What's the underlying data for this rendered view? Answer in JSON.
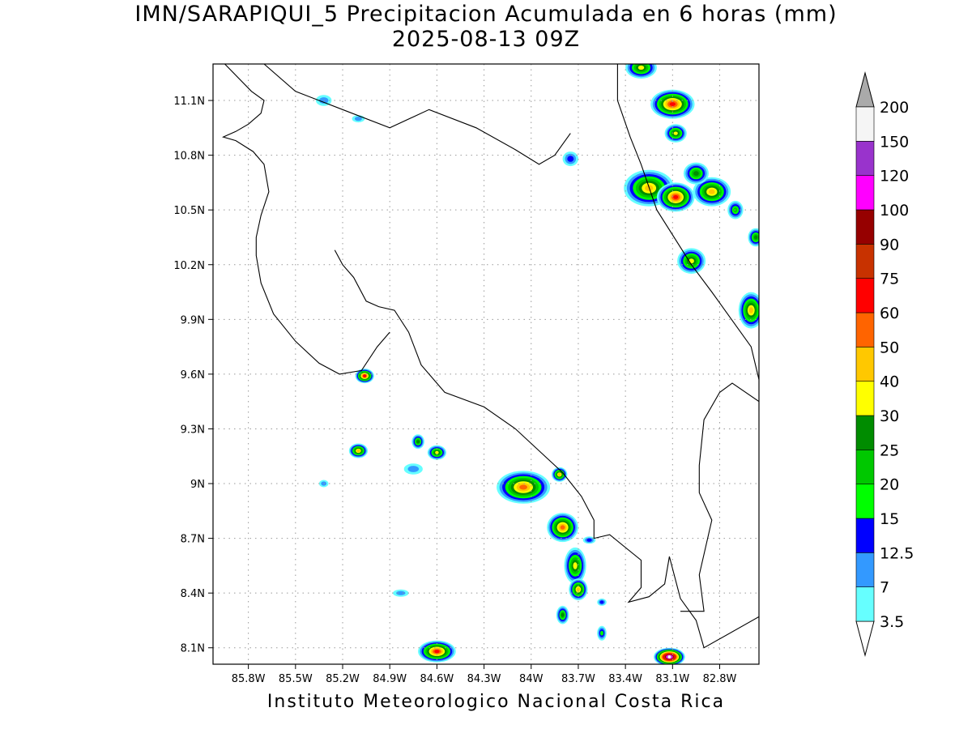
{
  "title": {
    "line1": "IMN/SARAPIQUI_5 Precipitacion Acumulada en 6 horas (mm)",
    "line2": "2025-08-13 09Z"
  },
  "footer": "Instituto Meteorologico Nacional Costa Rica",
  "map": {
    "lon_range": [
      -86.025,
      -82.55
    ],
    "lat_range": [
      8.01,
      11.3
    ],
    "lon_ticks": [
      {
        "value": -85.8,
        "label": "85.8W"
      },
      {
        "value": -85.5,
        "label": "85.5W"
      },
      {
        "value": -85.2,
        "label": "85.2W"
      },
      {
        "value": -84.9,
        "label": "84.9W"
      },
      {
        "value": -84.6,
        "label": "84.6W"
      },
      {
        "value": -84.3,
        "label": "84.3W"
      },
      {
        "value": -84.0,
        "label": "84W"
      },
      {
        "value": -83.7,
        "label": "83.7W"
      },
      {
        "value": -83.4,
        "label": "83.4W"
      },
      {
        "value": -83.1,
        "label": "83.1W"
      },
      {
        "value": -82.8,
        "label": "82.8W"
      }
    ],
    "lat_ticks": [
      {
        "value": 11.1,
        "label": "11.1N"
      },
      {
        "value": 10.8,
        "label": "10.8N"
      },
      {
        "value": 10.5,
        "label": "10.5N"
      },
      {
        "value": 10.2,
        "label": "10.2N"
      },
      {
        "value": 9.9,
        "label": "9.9N"
      },
      {
        "value": 9.6,
        "label": "9.6N"
      },
      {
        "value": 9.3,
        "label": "9.3N"
      },
      {
        "value": 9.0,
        "label": "9N"
      },
      {
        "value": 8.7,
        "label": "8.7N"
      },
      {
        "value": 8.4,
        "label": "8.4N"
      },
      {
        "value": 8.1,
        "label": "8.1N"
      }
    ],
    "grid": "dotted",
    "coastlines": [
      [
        [
          -85.95,
          11.3
        ],
        [
          -85.78,
          11.15
        ],
        [
          -85.7,
          11.1
        ],
        [
          -85.72,
          11.03
        ],
        [
          -85.8,
          10.97
        ],
        [
          -85.88,
          10.93
        ],
        [
          -85.96,
          10.9
        ],
        [
          -85.88,
          10.88
        ],
        [
          -85.77,
          10.82
        ],
        [
          -85.7,
          10.75
        ],
        [
          -85.67,
          10.6
        ],
        [
          -85.72,
          10.47
        ],
        [
          -85.75,
          10.35
        ],
        [
          -85.75,
          10.25
        ],
        [
          -85.72,
          10.1
        ],
        [
          -85.64,
          9.93
        ],
        [
          -85.5,
          9.78
        ],
        [
          -85.35,
          9.66
        ],
        [
          -85.22,
          9.6
        ],
        [
          -85.08,
          9.62
        ],
        [
          -84.98,
          9.75
        ],
        [
          -84.9,
          9.83
        ]
      ],
      [
        [
          -85.25,
          10.28
        ],
        [
          -85.2,
          10.2
        ],
        [
          -85.13,
          10.13
        ],
        [
          -85.05,
          10.0
        ],
        [
          -84.97,
          9.97
        ],
        [
          -84.87,
          9.95
        ],
        [
          -84.78,
          9.83
        ],
        [
          -84.7,
          9.65
        ],
        [
          -84.55,
          9.5
        ],
        [
          -84.3,
          9.42
        ],
        [
          -84.1,
          9.3
        ],
        [
          -83.95,
          9.18
        ],
        [
          -83.8,
          9.06
        ],
        [
          -83.68,
          8.93
        ],
        [
          -83.6,
          8.8
        ],
        [
          -83.6,
          8.7
        ],
        [
          -83.5,
          8.72
        ],
        [
          -83.3,
          8.58
        ],
        [
          -83.3,
          8.43
        ],
        [
          -83.38,
          8.35
        ],
        [
          -83.25,
          8.38
        ],
        [
          -83.15,
          8.45
        ],
        [
          -83.12,
          8.6
        ],
        [
          -83.05,
          8.37
        ],
        [
          -82.95,
          8.25
        ],
        [
          -82.9,
          8.1
        ],
        [
          -82.55,
          8.27
        ]
      ],
      [
        [
          -83.45,
          11.3
        ],
        [
          -83.45,
          11.1
        ],
        [
          -83.37,
          10.9
        ],
        [
          -83.3,
          10.75
        ],
        [
          -83.2,
          10.5
        ],
        [
          -82.98,
          10.2
        ],
        [
          -82.85,
          10.05
        ],
        [
          -82.6,
          9.75
        ],
        [
          -82.55,
          9.57
        ]
      ],
      [
        [
          -85.7,
          11.3
        ],
        [
          -85.5,
          11.15
        ],
        [
          -85.2,
          11.05
        ],
        [
          -84.9,
          10.95
        ],
        [
          -84.65,
          11.05
        ],
        [
          -84.35,
          10.95
        ],
        [
          -84.1,
          10.83
        ],
        [
          -83.95,
          10.75
        ],
        [
          -83.85,
          10.8
        ],
        [
          -83.75,
          10.92
        ]
      ],
      [
        [
          -82.55,
          9.45
        ],
        [
          -82.72,
          9.55
        ],
        [
          -82.8,
          9.5
        ],
        [
          -82.9,
          9.35
        ],
        [
          -82.93,
          9.1
        ],
        [
          -82.93,
          8.95
        ],
        [
          -82.85,
          8.8
        ],
        [
          -82.93,
          8.5
        ],
        [
          -82.9,
          8.3
        ],
        [
          -83.05,
          8.3
        ]
      ]
    ],
    "precip_cells": [
      {
        "lon": -83.1,
        "lat": 11.08,
        "rx": 0.14,
        "ry": 0.08,
        "max": 60
      },
      {
        "lon": -83.3,
        "lat": 11.28,
        "rx": 0.1,
        "ry": 0.06,
        "max": 35
      },
      {
        "lon": -83.08,
        "lat": 10.92,
        "rx": 0.07,
        "ry": 0.05,
        "max": 30
      },
      {
        "lon": -83.25,
        "lat": 10.62,
        "rx": 0.16,
        "ry": 0.1,
        "max": 40
      },
      {
        "lon": -83.08,
        "lat": 10.57,
        "rx": 0.12,
        "ry": 0.08,
        "max": 60
      },
      {
        "lon": -82.85,
        "lat": 10.6,
        "rx": 0.12,
        "ry": 0.08,
        "max": 40
      },
      {
        "lon": -82.95,
        "lat": 10.7,
        "rx": 0.08,
        "ry": 0.06,
        "max": 25
      },
      {
        "lon": -82.7,
        "lat": 10.5,
        "rx": 0.05,
        "ry": 0.05,
        "max": 20
      },
      {
        "lon": -82.98,
        "lat": 10.22,
        "rx": 0.09,
        "ry": 0.07,
        "max": 30
      },
      {
        "lon": -82.6,
        "lat": 9.95,
        "rx": 0.08,
        "ry": 0.1,
        "max": 40
      },
      {
        "lon": -82.57,
        "lat": 10.35,
        "rx": 0.05,
        "ry": 0.05,
        "max": 25
      },
      {
        "lon": -84.05,
        "lat": 8.98,
        "rx": 0.17,
        "ry": 0.09,
        "max": 50
      },
      {
        "lon": -83.8,
        "lat": 8.76,
        "rx": 0.1,
        "ry": 0.08,
        "max": 50
      },
      {
        "lon": -83.72,
        "lat": 8.55,
        "rx": 0.07,
        "ry": 0.1,
        "max": 30
      },
      {
        "lon": -83.7,
        "lat": 8.42,
        "rx": 0.06,
        "ry": 0.06,
        "max": 40
      },
      {
        "lon": -84.6,
        "lat": 8.08,
        "rx": 0.12,
        "ry": 0.06,
        "max": 60
      },
      {
        "lon": -83.12,
        "lat": 8.05,
        "rx": 0.1,
        "ry": 0.05,
        "max": 150
      },
      {
        "lon": -85.06,
        "lat": 9.59,
        "rx": 0.06,
        "ry": 0.04,
        "max": 60
      },
      {
        "lon": -85.1,
        "lat": 9.18,
        "rx": 0.06,
        "ry": 0.04,
        "max": 40
      },
      {
        "lon": -84.6,
        "lat": 9.17,
        "rx": 0.06,
        "ry": 0.04,
        "max": 35
      },
      {
        "lon": -84.72,
        "lat": 9.23,
        "rx": 0.04,
        "ry": 0.04,
        "max": 25
      },
      {
        "lon": -83.82,
        "lat": 9.05,
        "rx": 0.05,
        "ry": 0.04,
        "max": 40
      },
      {
        "lon": -83.8,
        "lat": 8.28,
        "rx": 0.04,
        "ry": 0.05,
        "max": 25
      },
      {
        "lon": -83.55,
        "lat": 8.18,
        "rx": 0.03,
        "ry": 0.04,
        "max": 15
      },
      {
        "lon": -84.83,
        "lat": 8.4,
        "rx": 0.05,
        "ry": 0.02,
        "max": 7
      },
      {
        "lon": -83.55,
        "lat": 8.35,
        "rx": 0.03,
        "ry": 0.02,
        "max": 12.5
      },
      {
        "lon": -83.63,
        "lat": 8.69,
        "rx": 0.04,
        "ry": 0.02,
        "max": 12.5
      },
      {
        "lon": -85.32,
        "lat": 11.1,
        "rx": 0.05,
        "ry": 0.03,
        "max": 7
      },
      {
        "lon": -85.1,
        "lat": 11.0,
        "rx": 0.04,
        "ry": 0.02,
        "max": 7
      },
      {
        "lon": -83.75,
        "lat": 10.78,
        "rx": 0.05,
        "ry": 0.04,
        "max": 12.5
      },
      {
        "lon": -85.32,
        "lat": 9.0,
        "rx": 0.03,
        "ry": 0.02,
        "max": 7
      },
      {
        "lon": -84.75,
        "lat": 9.08,
        "rx": 0.06,
        "ry": 0.03,
        "max": 7
      }
    ]
  },
  "colorbar": {
    "levels": [
      {
        "label": "3.5",
        "color": "#66ffff"
      },
      {
        "label": "7",
        "color": "#3399ff"
      },
      {
        "label": "12.5",
        "color": "#0000ff"
      },
      {
        "label": "15",
        "color": "#00ff00"
      },
      {
        "label": "20",
        "color": "#00c800"
      },
      {
        "label": "25",
        "color": "#008c00"
      },
      {
        "label": "30",
        "color": "#ffff00"
      },
      {
        "label": "40",
        "color": "#ffc800"
      },
      {
        "label": "50",
        "color": "#ff6400"
      },
      {
        "label": "60",
        "color": "#ff0000"
      },
      {
        "label": "75",
        "color": "#c83200"
      },
      {
        "label": "90",
        "color": "#960000"
      },
      {
        "label": "100",
        "color": "#ff00ff"
      },
      {
        "label": "120",
        "color": "#9933cc"
      },
      {
        "label": "150",
        "color": "#f5f5f5"
      },
      {
        "label": "200",
        "color": "#aaaaaa"
      }
    ]
  }
}
